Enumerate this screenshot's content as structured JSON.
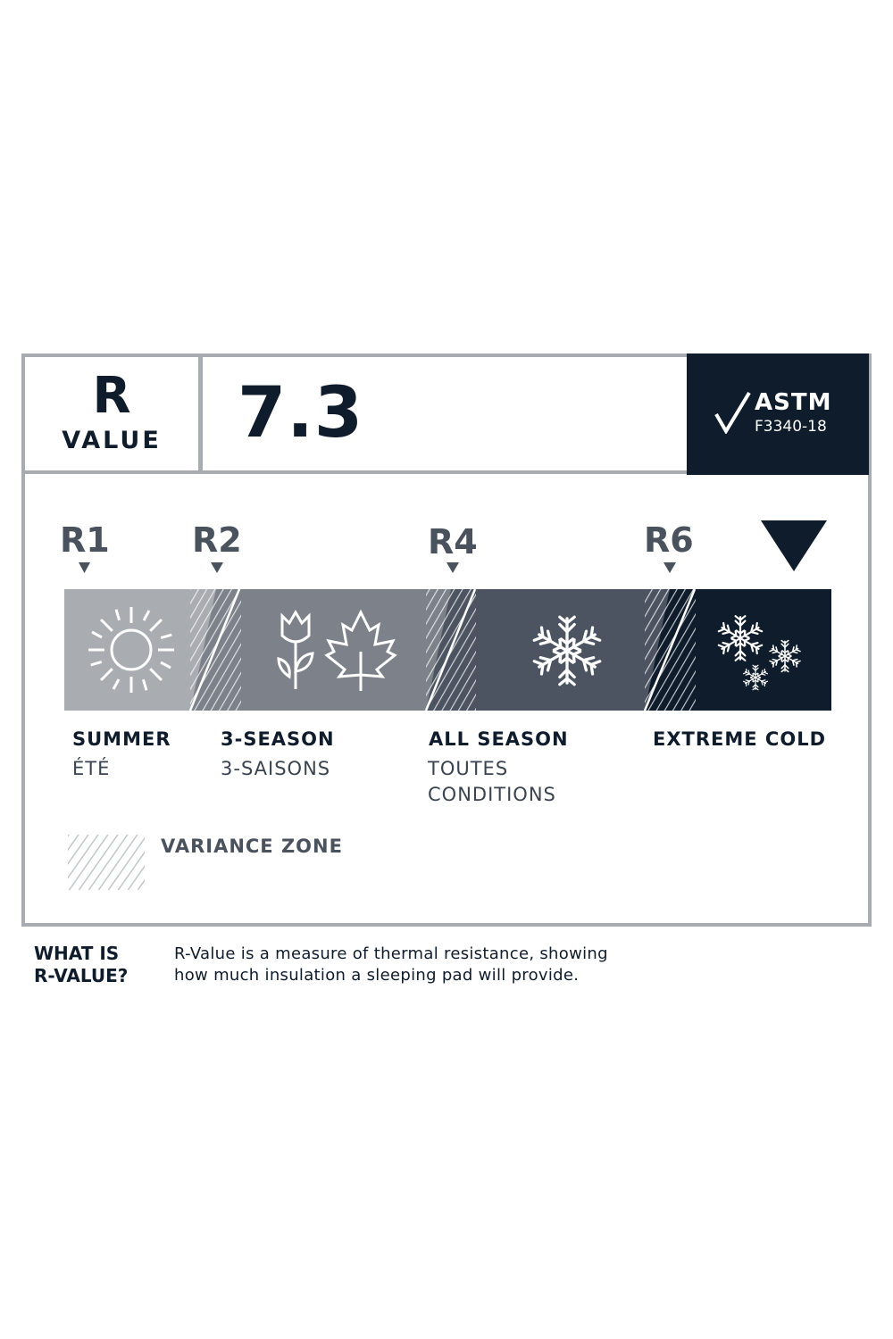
{
  "header": {
    "r_letter": "R",
    "r_word": "VALUE",
    "r_value": "7.3",
    "r_value_numeric": 7.3
  },
  "badge": {
    "title": "ASTM",
    "standard": "F3340-18",
    "icon": "checkmark-icon"
  },
  "markers": [
    {
      "label": "R1",
      "value": 1
    },
    {
      "label": "R2",
      "value": 2
    },
    {
      "label": "R4",
      "value": 4
    },
    {
      "label": "R6",
      "value": 6
    }
  ],
  "zones": [
    {
      "label": "SUMMER",
      "sub": "ÉTÉ",
      "color": "#a9acb1",
      "icon": "sun-icon"
    },
    {
      "label": "3-SEASON",
      "sub": "3-SAISONS",
      "color": "#7d828a",
      "icon": "flower-leaf-icon"
    },
    {
      "label": "ALL SEASON",
      "sub": "TOUTES",
      "sub2": "CONDITIONS",
      "color": "#4b5460",
      "icon": "snowflake-icon"
    },
    {
      "label": "EXTREME COLD",
      "color": "#0f1c2b",
      "icon": "snowflakes-icon"
    }
  ],
  "legend": {
    "variance_zone": "VARIANCE ZONE"
  },
  "footer": {
    "q1": "WHAT IS",
    "q2": "R-VALUE?",
    "d1": "R-Value is a measure of thermal resistance, showing",
    "d2": "how much insulation a sleeping pad will provide."
  },
  "colors": {
    "navy": "#0f1c2b",
    "border": "#a8acb1"
  }
}
